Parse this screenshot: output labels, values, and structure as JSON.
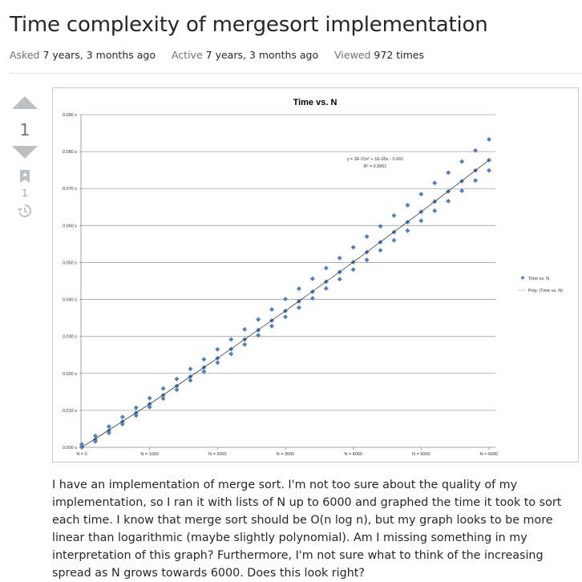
{
  "question": {
    "title": "Time complexity of mergesort implementation",
    "meta": [
      {
        "label": "Asked",
        "value": "7 years, 3 months ago"
      },
      {
        "label": "Active",
        "value": "7 years, 3 months ago"
      },
      {
        "label": "Viewed",
        "value": "972 times"
      }
    ],
    "score": "1",
    "bookmark_count": "1",
    "icons": {
      "upvote": "arrow-up-icon",
      "downvote": "arrow-down-icon",
      "bookmark": "bookmark-icon",
      "history": "history-icon"
    },
    "body": "I have an implementation of merge sort. I'm not too sure about the quality of my implementation, so I ran it with lists of N up to 6000 and graphed the time it took to sort each time. I know that merge sort should be O(n log n), but my graph looks to be more linear than logarithmic (maybe slightly polynomial). Am I missing something in my interpretation of this graph? Furthermore, I'm not sure what to think of the increasing spread as N grows towards 6000. Does this look right?"
  },
  "chart_data": {
    "type": "scatter",
    "title": "Time vs. N",
    "xlabel": "",
    "ylabel": "",
    "xlim": [
      0,
      6000
    ],
    "ylim": [
      0,
      0.09
    ],
    "grid": true,
    "legend_position": "right",
    "x_ticks": [
      "N = 0",
      "N = 1000",
      "N = 2000",
      "N = 3000",
      "N = 4000",
      "N = 5000",
      "N = 6000"
    ],
    "y_ticks": [
      "0.000 s",
      "0.010 s",
      "0.020 s",
      "0.030 s",
      "0.040 s",
      "0.050 s",
      "0.060 s",
      "0.070 s",
      "0.080 s",
      "0.090 s"
    ],
    "series_color": "#4f81bd",
    "legend": [
      "Time vs. N",
      "Poly. (Time vs. N)"
    ],
    "annotation": {
      "equation": "y = 2E-10x² + 1E-05x - 0.001",
      "r_squared": "R² = 0.9961"
    },
    "points": [
      {
        "N": 0,
        "times": [
          0.0,
          0.0002,
          0.0008
        ]
      },
      {
        "N": 200,
        "times": [
          0.0016,
          0.0021,
          0.0031
        ]
      },
      {
        "N": 400,
        "times": [
          0.0039,
          0.0045,
          0.0056
        ]
      },
      {
        "N": 600,
        "times": [
          0.0063,
          0.0069,
          0.0082
        ]
      },
      {
        "N": 800,
        "times": [
          0.0086,
          0.0093,
          0.0107
        ]
      },
      {
        "N": 1000,
        "times": [
          0.0109,
          0.0117,
          0.0133
        ]
      },
      {
        "N": 1200,
        "times": [
          0.0132,
          0.0141,
          0.0159
        ]
      },
      {
        "N": 1400,
        "times": [
          0.0156,
          0.0166,
          0.0185
        ]
      },
      {
        "N": 1600,
        "times": [
          0.0181,
          0.0191,
          0.0212
        ]
      },
      {
        "N": 1800,
        "times": [
          0.0205,
          0.0216,
          0.0238
        ]
      },
      {
        "N": 2000,
        "times": [
          0.0229,
          0.0241,
          0.0265
        ]
      },
      {
        "N": 2200,
        "times": [
          0.0253,
          0.0266,
          0.0292
        ]
      },
      {
        "N": 2400,
        "times": [
          0.0278,
          0.0292,
          0.0319
        ]
      },
      {
        "N": 2600,
        "times": [
          0.0303,
          0.0317,
          0.0346
        ]
      },
      {
        "N": 2800,
        "times": [
          0.0328,
          0.0343,
          0.0373
        ]
      },
      {
        "N": 3000,
        "times": [
          0.0353,
          0.0369,
          0.0401
        ]
      },
      {
        "N": 3200,
        "times": [
          0.0378,
          0.0395,
          0.0429
        ]
      },
      {
        "N": 3400,
        "times": [
          0.0403,
          0.0421,
          0.0456
        ]
      },
      {
        "N": 3600,
        "times": [
          0.043,
          0.0448,
          0.0485
        ]
      },
      {
        "N": 3800,
        "times": [
          0.0455,
          0.0474,
          0.0512
        ]
      },
      {
        "N": 4000,
        "times": [
          0.0481,
          0.0501,
          0.0541
        ]
      },
      {
        "N": 4200,
        "times": [
          0.0507,
          0.0528,
          0.057
        ]
      },
      {
        "N": 4400,
        "times": [
          0.0533,
          0.0555,
          0.0598
        ]
      },
      {
        "N": 4600,
        "times": [
          0.056,
          0.0582,
          0.0627
        ]
      },
      {
        "N": 4800,
        "times": [
          0.0586,
          0.0609,
          0.0655
        ]
      },
      {
        "N": 5000,
        "times": [
          0.0613,
          0.0637,
          0.0685
        ]
      },
      {
        "N": 5200,
        "times": [
          0.064,
          0.0665,
          0.0715
        ]
      },
      {
        "N": 5400,
        "times": [
          0.0666,
          0.0692,
          0.0743
        ]
      },
      {
        "N": 5600,
        "times": [
          0.0694,
          0.072,
          0.0773
        ]
      },
      {
        "N": 5800,
        "times": [
          0.0722,
          0.0749,
          0.0803
        ]
      },
      {
        "N": 6000,
        "times": [
          0.0749,
          0.0777,
          0.0833
        ]
      }
    ],
    "trendline": {
      "N": [
        0,
        1000,
        2000,
        3000,
        4000,
        5000,
        6000
      ],
      "time": [
        0.0,
        0.0117,
        0.0241,
        0.0369,
        0.0501,
        0.0637,
        0.0777
      ]
    }
  }
}
